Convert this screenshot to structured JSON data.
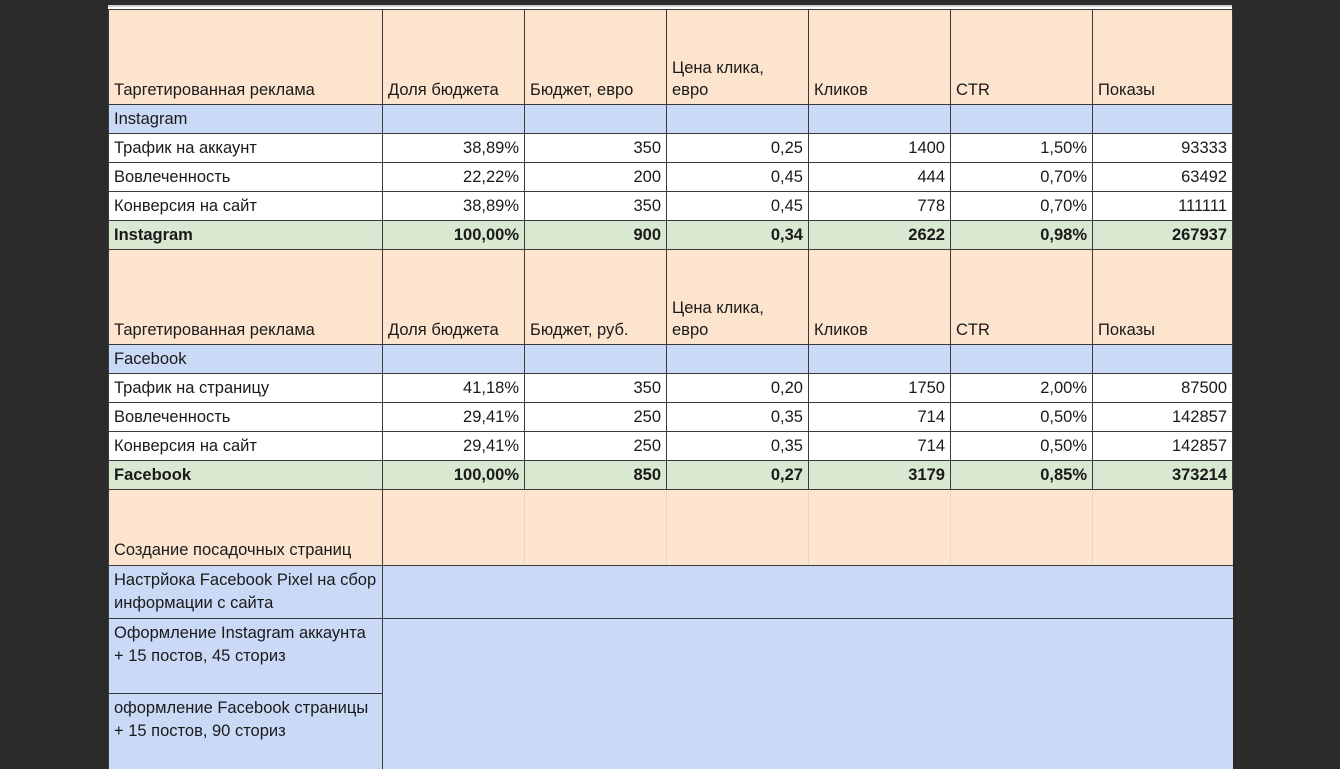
{
  "instagram": {
    "header": [
      "Таргетированная реклама",
      "Доля бюджета",
      "Бюджет, евро",
      "Цена клика, евро",
      "Кликов",
      "CTR",
      "Показы"
    ],
    "section": "Instagram",
    "rows": [
      [
        "Трафик на аккаунт",
        "38,89%",
        "350",
        "0,25",
        "1400",
        "1,50%",
        "93333"
      ],
      [
        "Вовлеченность",
        "22,22%",
        "200",
        "0,45",
        "444",
        "0,70%",
        "63492"
      ],
      [
        "Конверсия на сайт",
        "38,89%",
        "350",
        "0,45",
        "778",
        "0,70%",
        "111111"
      ]
    ],
    "total": [
      "Instagram",
      "100,00%",
      "900",
      "0,34",
      "2622",
      "0,98%",
      "267937"
    ]
  },
  "facebook": {
    "header": [
      "Таргетированная реклама",
      "Доля бюджета",
      "Бюджет, руб.",
      "Цена клика, евро",
      "Кликов",
      "CTR",
      "Показы"
    ],
    "section": "Facebook",
    "rows": [
      [
        "Трафик на страницу",
        "41,18%",
        "350",
        "0,20",
        "1750",
        "2,00%",
        "87500"
      ],
      [
        "Вовлеченность",
        "29,41%",
        "250",
        "0,35",
        "714",
        "0,50%",
        "142857"
      ],
      [
        "Конверсия на сайт",
        "29,41%",
        "250",
        "0,35",
        "714",
        "0,50%",
        "142857"
      ]
    ],
    "total": [
      "Facebook",
      "100,00%",
      "850",
      "0,27",
      "3179",
      "0,85%",
      "373214"
    ]
  },
  "tasks": {
    "landing": "Создание посадочных страниц",
    "pixel": "Настрйока Facebook Pixel на сбор информации с сайта",
    "instagram_design": "Оформление Instagram аккаунта + 15 постов, 45 сториз",
    "facebook_design": "оформление Facebook страницы + 15 постов, 90 сториз"
  }
}
